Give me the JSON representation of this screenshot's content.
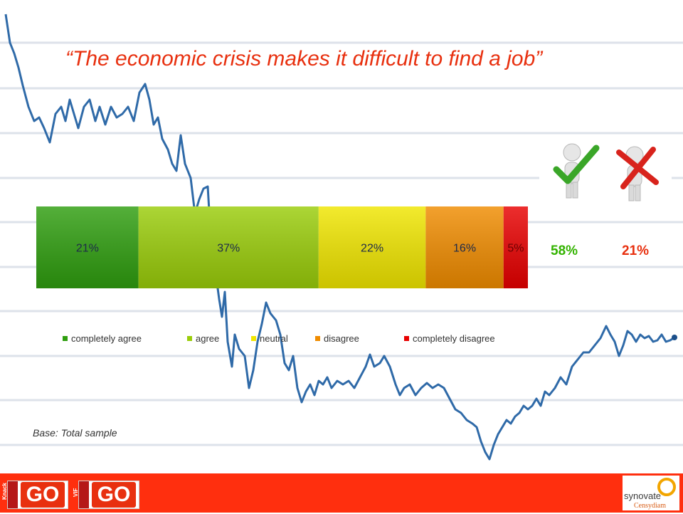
{
  "title": "“The economic crisis makes it difficult to find a job”",
  "chart_data": {
    "type": "bar",
    "orientation": "horizontal-stacked",
    "categories": [
      "completely agree",
      "agree",
      "neutral",
      "disagree",
      "completely disagree"
    ],
    "values": [
      21,
      37,
      22,
      16,
      5
    ],
    "value_labels": [
      "21%",
      "37%",
      "22%",
      "16%",
      "5%"
    ],
    "colors": [
      "#2f9e0f",
      "#9acd0a",
      "#f0e600",
      "#f08c00",
      "#e80000"
    ],
    "legend_position": "bottom",
    "grid": false
  },
  "summary": {
    "agree_total": "58%",
    "disagree_total": "21%",
    "agree_color": "#33b300",
    "disagree_color": "#e8300f"
  },
  "icons": [
    "agree-figure-check-icon",
    "disagree-figure-cross-icon"
  ],
  "base_note": "Base: Total sample",
  "footer": {
    "color": "#ff2f0e",
    "logos": [
      {
        "tag": "Knack",
        "text": "GO"
      },
      {
        "tag": "VIF",
        "text": "GO"
      }
    ],
    "brand": "synovate",
    "brand_sub": "Censydiam"
  }
}
